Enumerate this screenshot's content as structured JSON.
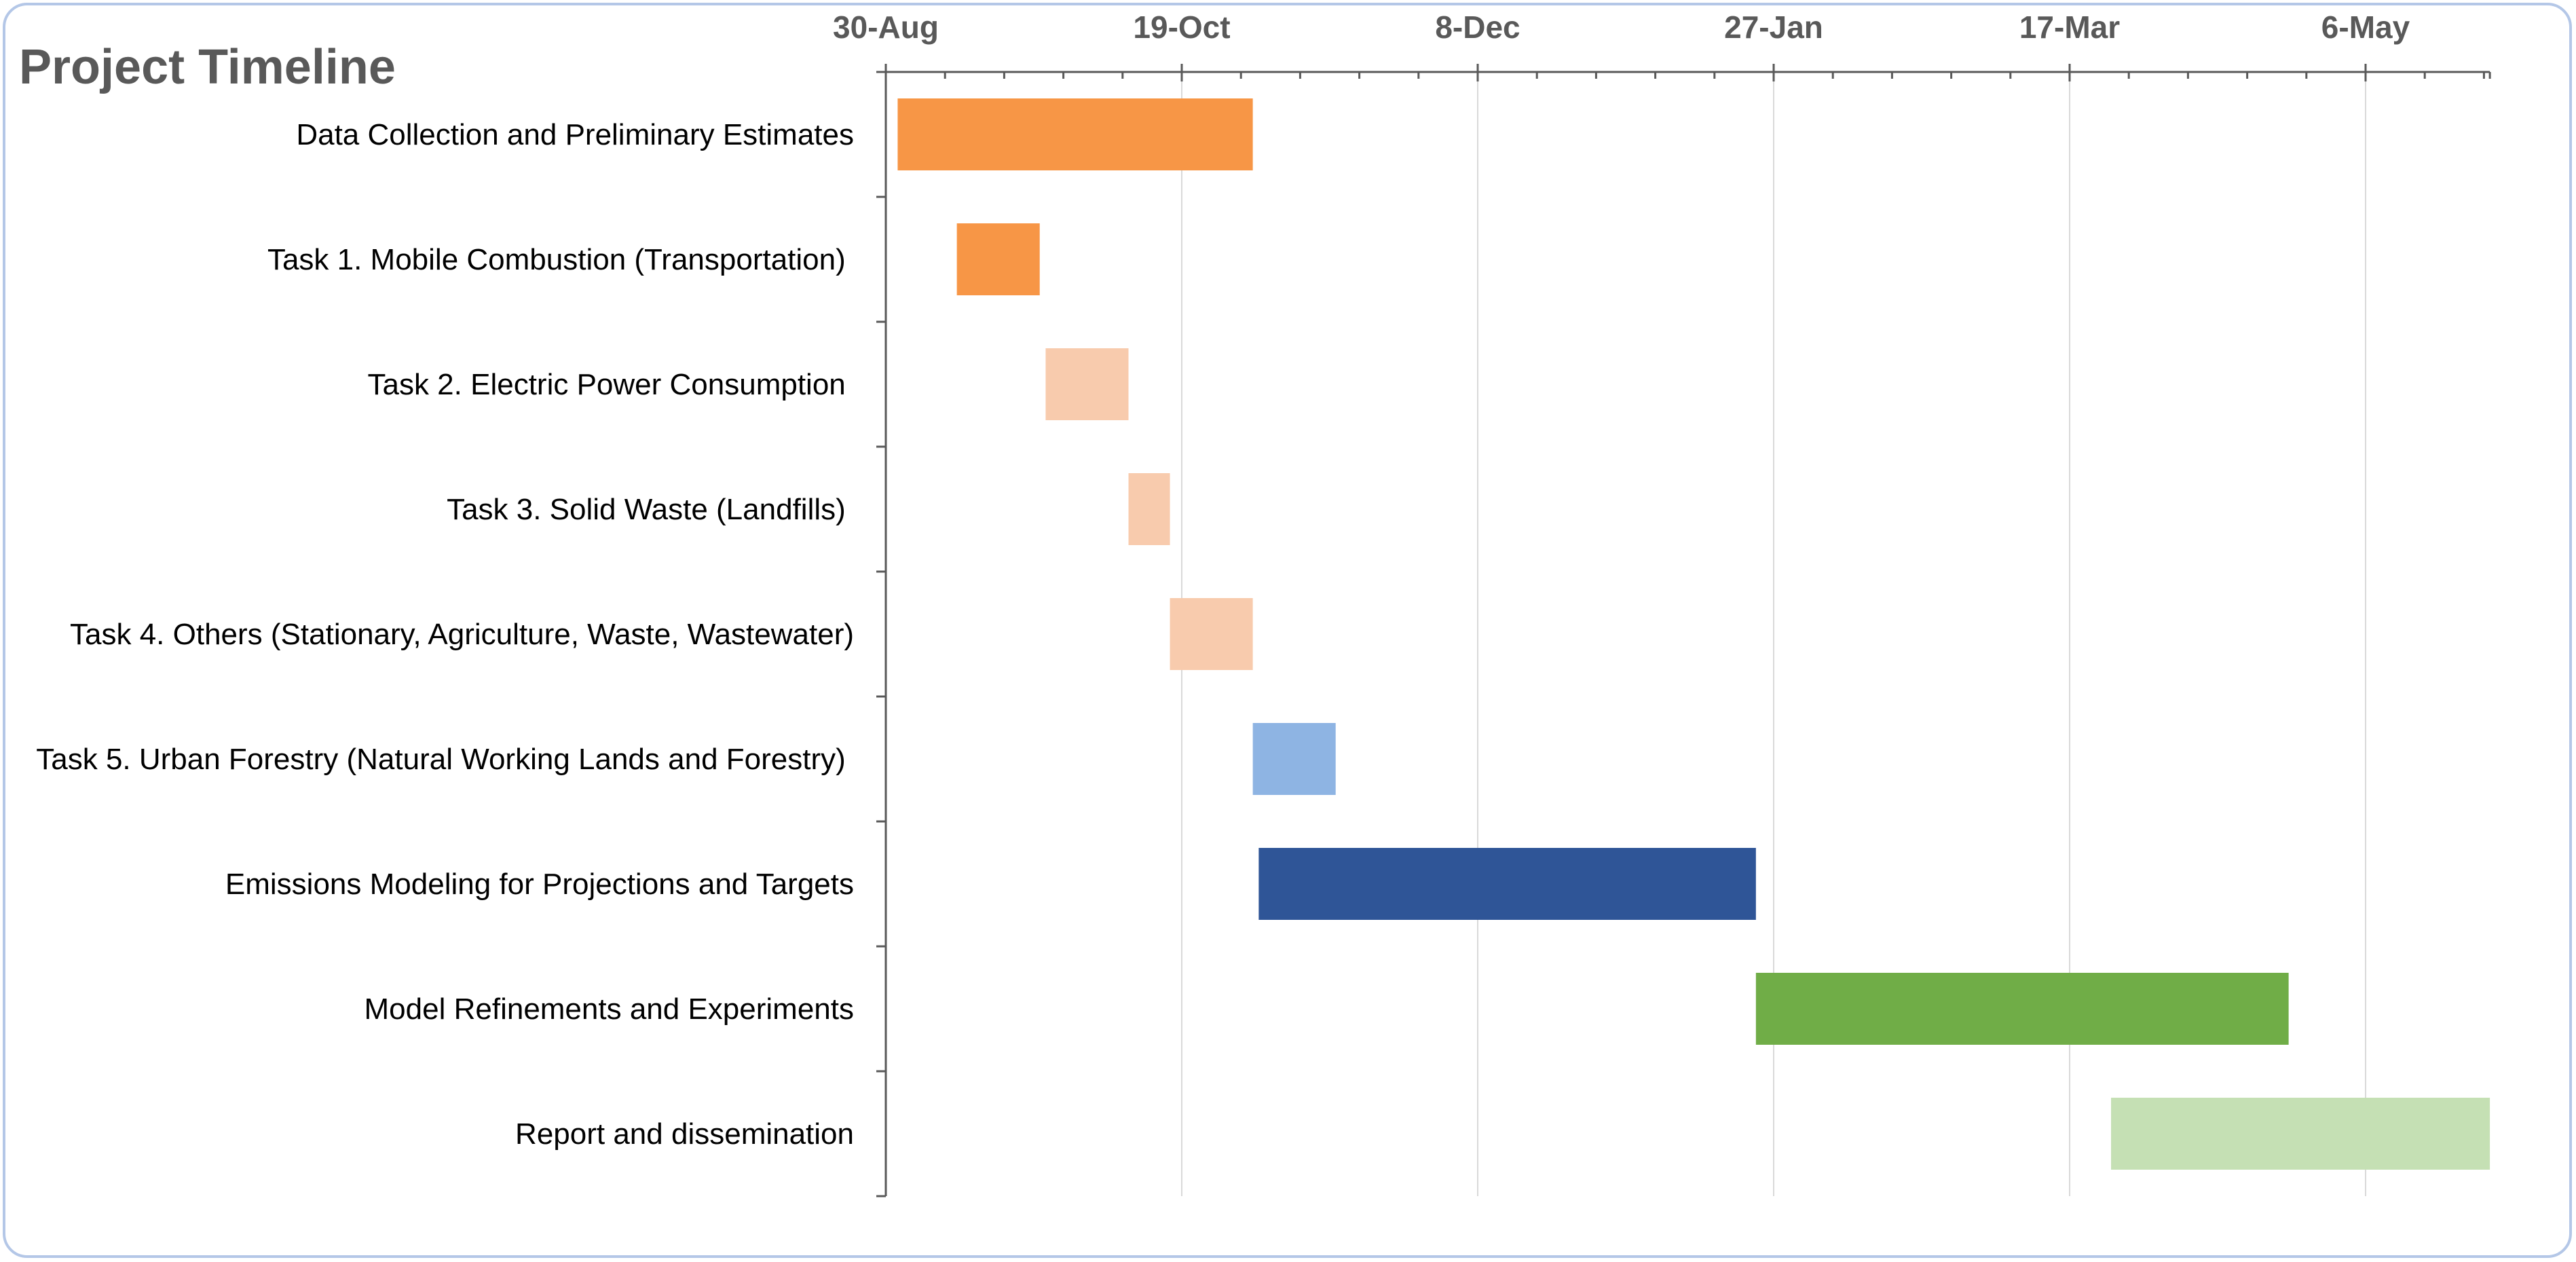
{
  "chart_data": {
    "type": "gantt",
    "title": "Project Timeline",
    "year_start": 2021,
    "axis": {
      "start": "2021-08-30",
      "end": "2022-05-28",
      "major_step_days": 50,
      "minor_step_days": 10,
      "tick_labels": [
        "30-Aug",
        "19-Oct",
        "8-Dec",
        "27-Jan",
        "17-Mar",
        "6-May"
      ],
      "grid": true
    },
    "tasks": [
      {
        "name": "Data Collection and Preliminary Estimates",
        "start": "2021-09-01",
        "end": "2021-10-31",
        "color": "#f79646"
      },
      {
        "name": "Task 1. Mobile Combustion (Transportation) ",
        "start": "2021-09-11",
        "end": "2021-09-25",
        "color": "#f79646"
      },
      {
        "name": "Task 2. Electric Power Consumption ",
        "start": "2021-09-26",
        "end": "2021-10-10",
        "color": "#f8cbad"
      },
      {
        "name": "Task 3. Solid Waste (Landfills) ",
        "start": "2021-10-10",
        "end": "2021-10-17",
        "color": "#f8cbad"
      },
      {
        "name": "Task 4. Others (Stationary, Agriculture, Waste, Wastewater)",
        "start": "2021-10-17",
        "end": "2021-10-31",
        "color": "#f8cbad"
      },
      {
        "name": "Task 5. Urban Forestry (Natural Working Lands and Forestry) ",
        "start": "2021-10-31",
        "end": "2021-11-14",
        "color": "#8eb4e3"
      },
      {
        "name": "Emissions Modeling for Projections and Targets",
        "start": "2021-11-01",
        "end": "2022-01-24",
        "color": "#2f5597"
      },
      {
        "name": "Model Refinements and Experiments",
        "start": "2022-01-24",
        "end": "2022-04-24",
        "color": "#70ad47"
      },
      {
        "name": "Report and dissemination",
        "start": "2022-03-25",
        "end": "2022-05-28",
        "color": "#c5e0b4"
      }
    ]
  }
}
